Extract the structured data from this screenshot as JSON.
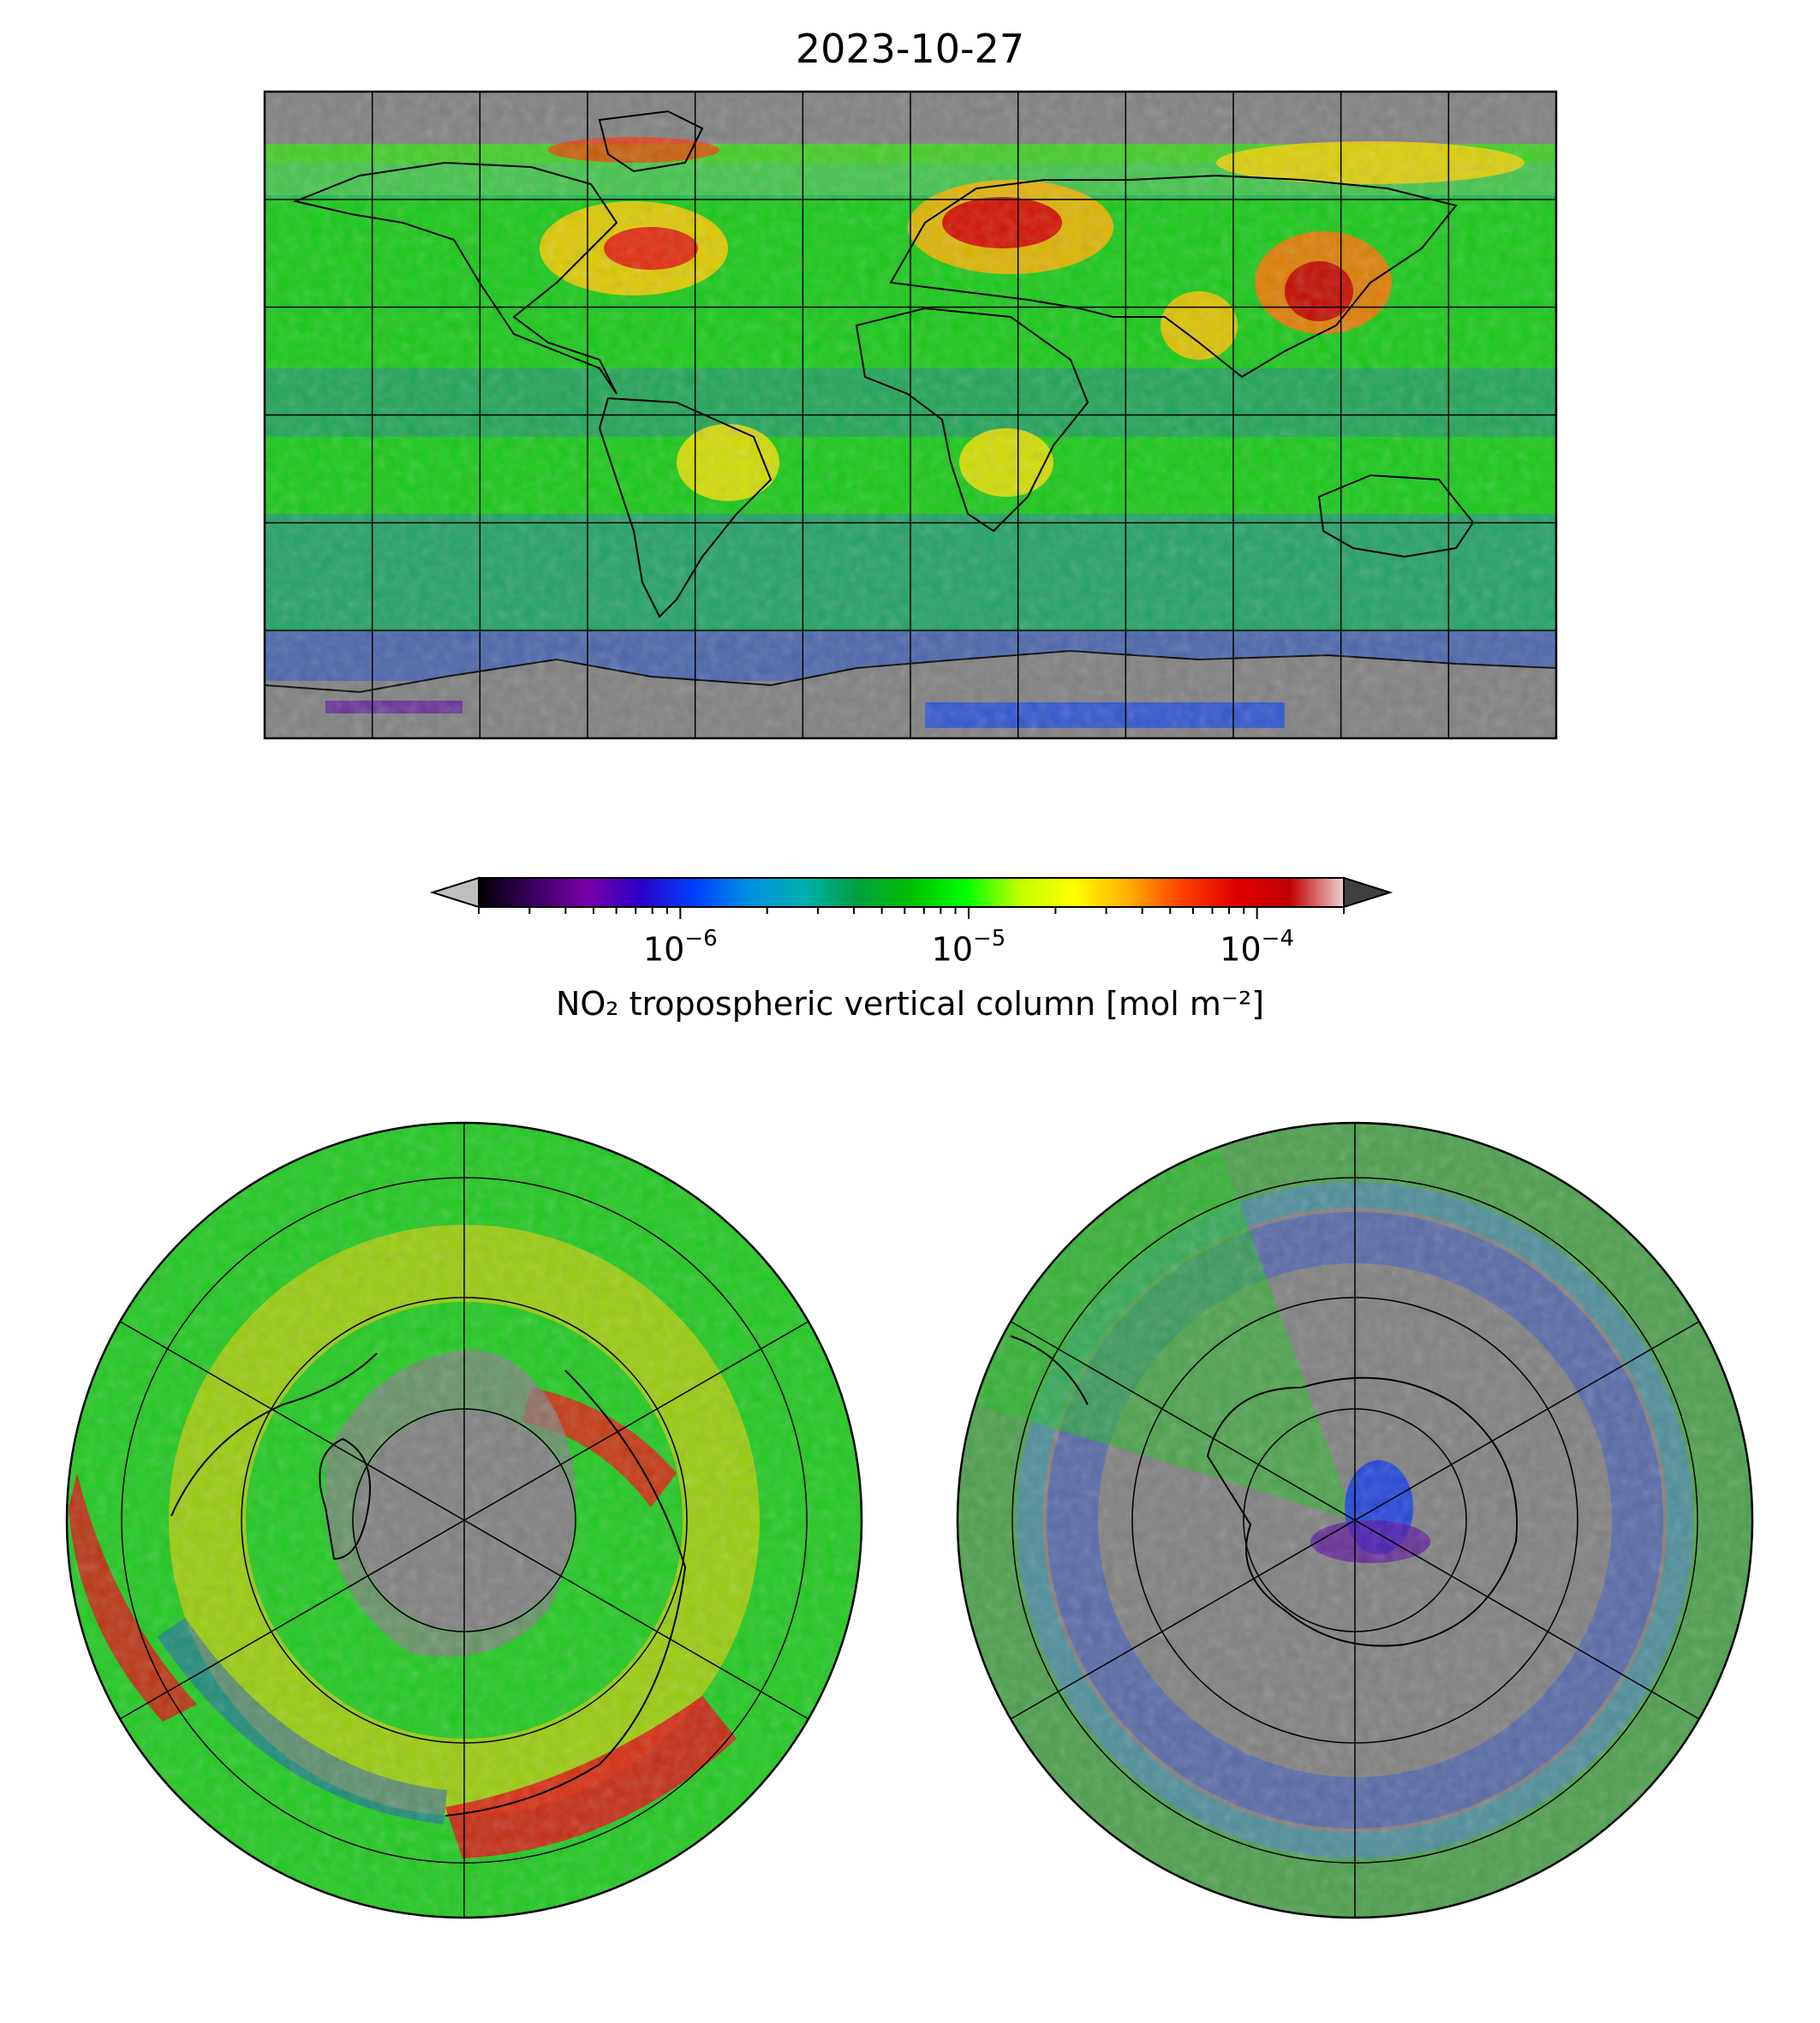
{
  "figure": {
    "title": "2023-10-27",
    "colorbar": {
      "label": "NO₂ tropospheric vertical column [mol m⁻²]",
      "scale": "log",
      "range": [
        2e-07,
        0.0002
      ],
      "ticks": [
        {
          "base": "10",
          "exp": "−6",
          "value": 1e-06
        },
        {
          "base": "10",
          "exp": "−5",
          "value": 1e-05
        },
        {
          "base": "10",
          "exp": "−4",
          "value": 0.0001
        }
      ],
      "extend": "both",
      "colors": [
        "#000000",
        "#3a0060",
        "#7a00a8",
        "#2a00c8",
        "#0040ff",
        "#0090e0",
        "#00b0b0",
        "#00a040",
        "#00c000",
        "#00ff00",
        "#c0ff00",
        "#ffff00",
        "#ffb000",
        "#ff4000",
        "#e00000",
        "#c00000",
        "#f0d0d0"
      ],
      "under_color": "#bfbfbf",
      "over_color": "#404040"
    },
    "panels": {
      "global_map": {
        "projection": "plate-carree",
        "lon_range": [
          -180,
          180
        ],
        "lat_range": [
          -90,
          90
        ],
        "gridlines_lon": [
          -150,
          -120,
          -90,
          -60,
          -30,
          0,
          30,
          60,
          90,
          120,
          150
        ],
        "gridlines_lat": [
          -60,
          -30,
          0,
          30,
          60
        ],
        "no_data_color": "#808080"
      },
      "north_polar": {
        "projection": "north-polar-stereographic",
        "center": "North Pole"
      },
      "south_polar": {
        "projection": "south-polar-stereographic",
        "center": "South Pole"
      }
    }
  }
}
